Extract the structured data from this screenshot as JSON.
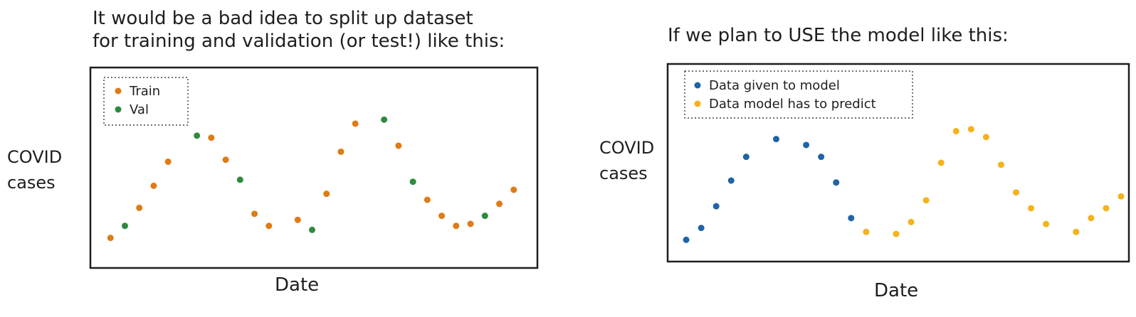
{
  "colors": {
    "train": "#e07b14",
    "val": "#2e8b3e",
    "given": "#1f63a8",
    "predict": "#f5b21a",
    "frame": "#1e1e1e"
  },
  "left_panel": {
    "title": "It would be a bad idea to split up dataset\nfor training and validation (or test!) like this:",
    "ylabel": "COVID\ncases",
    "xlabel": "Date"
  },
  "right_panel": {
    "title": "If we plan to USE the model like this:",
    "ylabel": "COVID\ncases",
    "xlabel": "Date"
  },
  "chart_data": [
    {
      "type": "scatter",
      "title": "It would be a bad idea to split up dataset for training and validation (or test!) like this:",
      "xlabel": "Date",
      "ylabel": "COVID cases",
      "xlim": [
        0,
        30
      ],
      "ylim": [
        0,
        10
      ],
      "grid": false,
      "legend": "top-left",
      "series": [
        {
          "name": "Train",
          "color_key": "train",
          "x": [
            1,
            3,
            4,
            5,
            8,
            9,
            11,
            12,
            14,
            16,
            17,
            18,
            21,
            23,
            24,
            25,
            26,
            28,
            29
          ],
          "y": [
            1.5,
            3.0,
            4.1,
            5.3,
            6.5,
            5.4,
            2.7,
            2.1,
            2.4,
            3.7,
            5.8,
            7.2,
            6.1,
            3.4,
            2.6,
            2.1,
            2.2,
            3.2,
            3.9
          ]
        },
        {
          "name": "Val",
          "color_key": "val",
          "x": [
            2,
            7,
            10,
            15,
            20,
            22,
            27
          ],
          "y": [
            2.1,
            6.6,
            4.4,
            1.9,
            7.4,
            4.3,
            2.6
          ]
        }
      ]
    },
    {
      "type": "scatter",
      "title": "If we plan to USE the model like this:",
      "xlabel": "Date",
      "ylabel": "COVID cases",
      "xlim": [
        0,
        30
      ],
      "ylim": [
        0,
        10
      ],
      "grid": false,
      "legend": "top-left",
      "series": [
        {
          "name": "Data given to model",
          "color_key": "given",
          "x": [
            1,
            2,
            3,
            4,
            5,
            7,
            9,
            10,
            11,
            12
          ],
          "y": [
            1.1,
            1.7,
            2.8,
            4.1,
            5.3,
            6.2,
            5.9,
            5.3,
            4.0,
            2.2
          ]
        },
        {
          "name": "Data model has to predict",
          "color_key": "predict",
          "x": [
            13,
            15,
            16,
            17,
            18,
            19,
            20,
            21,
            22,
            23,
            24,
            25,
            27,
            28,
            29,
            30
          ],
          "y": [
            1.5,
            1.4,
            2.0,
            3.1,
            5.0,
            6.6,
            6.7,
            6.3,
            4.9,
            3.5,
            2.7,
            1.9,
            1.5,
            2.2,
            2.7,
            3.3
          ]
        }
      ]
    }
  ]
}
